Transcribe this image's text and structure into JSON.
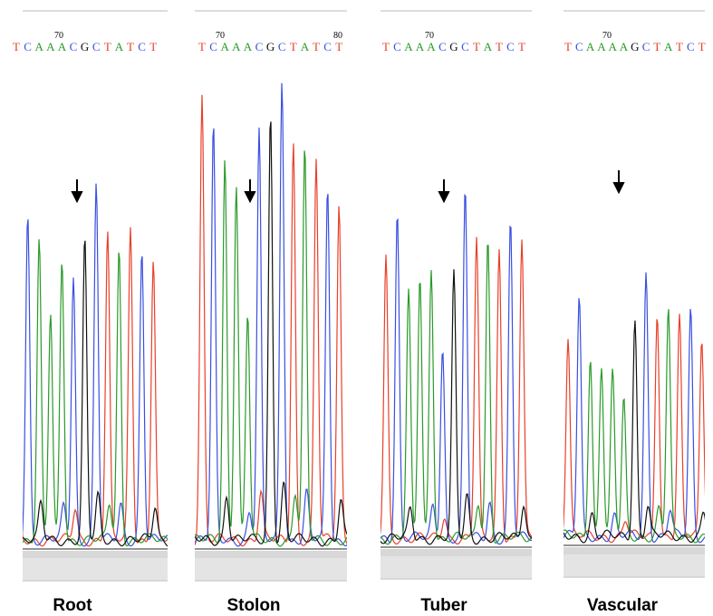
{
  "panels": [
    {
      "label": "Root",
      "positions": [
        "70"
      ],
      "bases": [
        "T",
        "C",
        "A",
        "A",
        "A",
        "C",
        "G",
        "C",
        "T",
        "A",
        "T",
        "C",
        "T"
      ]
    },
    {
      "label": "Stolon",
      "positions": [
        "70",
        "80"
      ],
      "bases": [
        "T",
        "C",
        "A",
        "A",
        "A",
        "C",
        "G",
        "C",
        "T",
        "A",
        "T",
        "C",
        "T"
      ]
    },
    {
      "label": "Tuber",
      "positions": [
        "70"
      ],
      "bases": [
        "T",
        "C",
        "A",
        "A",
        "A",
        "C",
        "G",
        "C",
        "T",
        "A",
        "T",
        "C",
        "T"
      ]
    },
    {
      "label": "Vascular",
      "positions": [
        "70"
      ],
      "bases": [
        "T",
        "C",
        "A",
        "A",
        "A",
        "A",
        "G",
        "C",
        "T",
        "A",
        "T",
        "C",
        "T"
      ]
    }
  ],
  "base_colors": {
    "T": "#e8402a",
    "C": "#3a4fe0",
    "A": "#2a9a2a",
    "G": "#111111"
  }
}
